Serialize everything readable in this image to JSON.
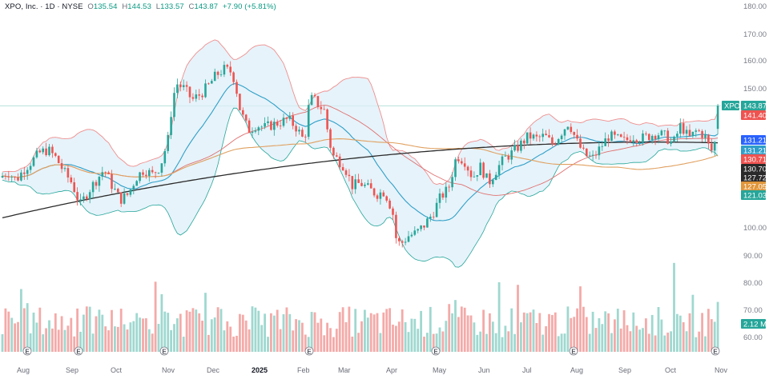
{
  "header": {
    "symbol": "XPO, Inc. · 1D · NYSE",
    "open_label": "O",
    "open": "135.54",
    "high_label": "H",
    "high": "144.53",
    "low_label": "L",
    "low": "133.57",
    "close_label": "C",
    "close": "143.87",
    "change": "+7.90 (+5.81%)"
  },
  "colors": {
    "up": "#26a69a",
    "down": "#ef5350",
    "bollinger": "#f08e8e",
    "bollinger_fill": "#dbeef8",
    "ma_fast": "#2e9fc8",
    "ma_slow": "#e0a060",
    "ma_long": "#2a2a2a",
    "ma_mid": "#e07070"
  },
  "chart_data": {
    "type": "candlestick",
    "price_axis": {
      "min": 55,
      "max": 182,
      "ticks": [
        "180.00",
        "170.00",
        "160.00",
        "150.00",
        "100.00",
        "90.00",
        "80.00",
        "70.00",
        "60.00"
      ]
    },
    "x_labels": [
      "Aug",
      "Sep",
      "Oct",
      "Nov",
      "Dec",
      "2025",
      "Feb",
      "Mar",
      "Apr",
      "May",
      "Jun",
      "Jul",
      "Aug",
      "Sep",
      "Oct",
      "Nov"
    ],
    "x_labels_bold": [
      "2025"
    ],
    "earnings_markers": 6,
    "earnings_label": "E",
    "price_tags": [
      {
        "label": "XPO",
        "value": "143.87",
        "color": "#26a69a"
      },
      {
        "value": "141.40",
        "color": "#ef5350"
      },
      {
        "value": "131.21",
        "color": "#2962ff"
      },
      {
        "value": "131.21",
        "color": "#2e9fc8"
      },
      {
        "value": "130.71",
        "color": "#ef5350"
      },
      {
        "value": "130.70",
        "color": "#2a2a2a"
      },
      {
        "value": "127.72",
        "color": "#2a2a2a"
      },
      {
        "value": "127.05",
        "color": "#e0963a"
      },
      {
        "value": "121.03",
        "color": "#26a69a"
      },
      {
        "value": "2.12 M",
        "color": "#26a69a"
      }
    ],
    "last_price": 143.87,
    "price_path": [
      [
        0,
        118
      ],
      [
        10,
        120
      ],
      [
        20,
        117
      ],
      [
        30,
        121
      ],
      [
        40,
        124
      ],
      [
        50,
        127
      ],
      [
        60,
        128
      ],
      [
        70,
        125
      ],
      [
        80,
        120
      ],
      [
        90,
        116
      ],
      [
        100,
        108
      ],
      [
        110,
        113
      ],
      [
        120,
        117
      ],
      [
        130,
        121
      ],
      [
        140,
        115
      ],
      [
        150,
        110
      ],
      [
        160,
        112
      ],
      [
        170,
        118
      ],
      [
        180,
        121
      ],
      [
        190,
        119
      ],
      [
        200,
        122
      ],
      [
        210,
        132
      ],
      [
        215,
        145
      ],
      [
        220,
        152
      ],
      [
        230,
        150
      ],
      [
        240,
        146
      ],
      [
        250,
        148
      ],
      [
        260,
        151
      ],
      [
        270,
        155
      ],
      [
        280,
        157
      ],
      [
        290,
        156
      ],
      [
        295,
        150
      ],
      [
        300,
        142
      ],
      [
        310,
        135
      ],
      [
        320,
        137
      ],
      [
        330,
        136
      ],
      [
        340,
        137
      ],
      [
        350,
        138
      ],
      [
        360,
        139
      ],
      [
        370,
        136
      ],
      [
        380,
        131
      ],
      [
        385,
        143
      ],
      [
        390,
        147
      ],
      [
        395,
        145
      ],
      [
        405,
        142
      ],
      [
        410,
        133
      ],
      [
        415,
        126
      ],
      [
        420,
        125
      ],
      [
        430,
        122
      ],
      [
        440,
        115
      ],
      [
        450,
        116
      ],
      [
        460,
        114
      ],
      [
        470,
        112
      ],
      [
        480,
        113
      ],
      [
        490,
        106
      ],
      [
        495,
        95
      ],
      [
        500,
        94
      ],
      [
        510,
        97
      ],
      [
        520,
        98
      ],
      [
        530,
        101
      ],
      [
        540,
        105
      ],
      [
        550,
        111
      ],
      [
        560,
        114
      ],
      [
        570,
        126
      ],
      [
        580,
        124
      ],
      [
        590,
        118
      ],
      [
        600,
        122
      ],
      [
        610,
        116
      ],
      [
        620,
        121
      ],
      [
        630,
        125
      ],
      [
        640,
        127
      ],
      [
        650,
        130
      ],
      [
        660,
        133
      ],
      [
        670,
        132
      ],
      [
        680,
        133
      ],
      [
        690,
        130
      ],
      [
        700,
        134
      ],
      [
        710,
        138
      ],
      [
        720,
        131
      ],
      [
        730,
        126
      ],
      [
        740,
        125
      ],
      [
        750,
        129
      ],
      [
        760,
        133
      ],
      [
        770,
        132
      ],
      [
        780,
        131
      ],
      [
        790,
        133
      ],
      [
        800,
        132
      ],
      [
        810,
        133
      ],
      [
        820,
        134
      ],
      [
        830,
        133
      ],
      [
        840,
        130
      ],
      [
        850,
        137
      ],
      [
        860,
        132
      ],
      [
        870,
        135
      ],
      [
        880,
        133
      ],
      [
        885,
        129
      ],
      [
        890,
        127
      ],
      [
        895,
        135
      ],
      [
        900,
        143.87
      ]
    ],
    "volume_max": 7
  }
}
